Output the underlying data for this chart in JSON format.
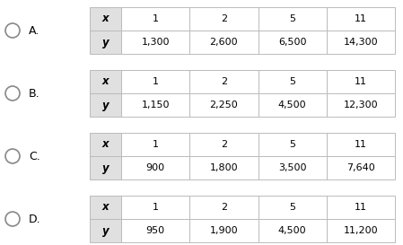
{
  "options": [
    "A.",
    "B.",
    "C.",
    "D."
  ],
  "tables": [
    {
      "x_vals": [
        "1",
        "2",
        "5",
        "11"
      ],
      "y_vals": [
        "1,300",
        "2,600",
        "6,500",
        "14,300"
      ]
    },
    {
      "x_vals": [
        "1",
        "2",
        "5",
        "11"
      ],
      "y_vals": [
        "1,150",
        "2,250",
        "4,500",
        "12,300"
      ]
    },
    {
      "x_vals": [
        "1",
        "2",
        "5",
        "11"
      ],
      "y_vals": [
        "900",
        "1,800",
        "3,500",
        "7,640"
      ]
    },
    {
      "x_vals": [
        "1",
        "2",
        "5",
        "11"
      ],
      "y_vals": [
        "950",
        "1,900",
        "4,500",
        "11,200"
      ]
    }
  ],
  "bg_color": "#ffffff",
  "table_line_color": "#bbbbbb",
  "text_color": "#000000",
  "header_bg": "#e0e0e0",
  "cell_bg": "#ffffff",
  "circle_color": "#888888",
  "fig_width": 4.49,
  "fig_height": 2.73,
  "dpi": 100
}
